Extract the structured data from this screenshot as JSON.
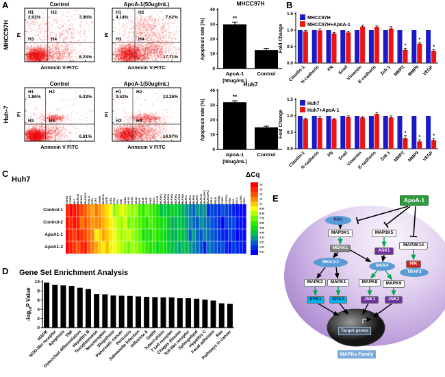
{
  "panel_labels": {
    "A": "A",
    "B": "B",
    "C": "C",
    "D": "D",
    "E": "E"
  },
  "panelA": {
    "row_labels": [
      "MHCC97H",
      "Huh-7"
    ],
    "flow_plots": [
      {
        "title": "Control",
        "ylabel": "PI",
        "xlabel": "Annexin V-FITC",
        "q1": "H1",
        "q2": "H2",
        "q3": "H3",
        "q4": "H4",
        "q1_pct": "2.02%",
        "q2_pct": "3.96%",
        "q4_pct": "6.24%"
      },
      {
        "title": "ApoA-1(50ug/mL)",
        "ylabel": "PI",
        "xlabel": "Annexin V-FITC",
        "q1": "H1",
        "q2": "H2",
        "q3": "H3",
        "q4": "H4",
        "q1_pct": "4.14%",
        "q2_pct": "7.62%",
        "q4_pct": "17.71%"
      },
      {
        "title": "Control",
        "ylabel": "PI",
        "xlabel": "Annexin V FITC",
        "q1": "H1",
        "q2": "H2",
        "q3": "H3",
        "q4": "H4",
        "q1_pct": "1.86%",
        "q2_pct": "6.33%",
        "q4_pct": "6.81%"
      },
      {
        "title": "ApoA-1(50ug/mL)",
        "ylabel": "PI",
        "xlabel": "Annexin V FITC",
        "q1": "H1",
        "q2": "H2",
        "q3": "H3",
        "q4": "H4",
        "q1_pct": "3.52%",
        "q2_pct": "13.26%",
        "q4_pct": "14.97%"
      }
    ]
  },
  "chart_data": [
    {
      "type": "bar",
      "title": "MHCC97H",
      "ylabel": "Apoptosis rate (%)",
      "ylim": [
        0,
        40
      ],
      "yticks": [
        0,
        10,
        20,
        30,
        40
      ],
      "categories": [
        [
          "ApoA-1",
          "(50ug/mL)"
        ],
        [
          "Control"
        ]
      ],
      "values": [
        30,
        12.5
      ],
      "errors": [
        1.5,
        1.2
      ],
      "sig": [
        "**",
        ""
      ]
    },
    {
      "type": "bar",
      "title": "Huh7",
      "ylabel": "Apoptosis rate (%)",
      "ylim": [
        0,
        40
      ],
      "yticks": [
        0,
        10,
        20,
        30,
        40
      ],
      "categories": [
        [
          "ApoA-1",
          "(50ug/mL)"
        ],
        [
          "Control"
        ]
      ],
      "values": [
        32,
        15
      ],
      "errors": [
        1.0,
        0.8
      ],
      "sig": [
        "**",
        ""
      ]
    },
    {
      "type": "grouped-bar",
      "ylabel": "Fold Change",
      "ylim": [
        0,
        1.5
      ],
      "yticks": [
        "0.0",
        "0.5",
        "1.0",
        "1.5"
      ],
      "legend": [
        "MHCC97H",
        "MHCC97H+ApoA-1"
      ],
      "colors": [
        "#1a1ac8",
        "#ee1414"
      ],
      "categories": [
        "Claudin-1",
        "N-cadherin",
        "FN",
        "Snail",
        "Vimentin",
        "E-cadherin",
        "Zeb 1",
        "MMP2",
        "MMP9",
        "VEGF"
      ],
      "series": [
        {
          "name": "MHCC97H",
          "values": [
            1,
            1,
            1,
            1,
            1,
            1,
            1,
            1,
            1,
            1
          ]
        },
        {
          "name": "MHCC97H+ApoA-1",
          "values": [
            0.96,
            0.99,
            0.9,
            0.93,
            1.11,
            1.1,
            1.05,
            0.4,
            0.59,
            0.37
          ],
          "errors": [
            0.03,
            0.05,
            0.03,
            0.04,
            0.04,
            0.03,
            0.06,
            0.05,
            0.04,
            0.04
          ],
          "sig": [
            "",
            "",
            "",
            "",
            "",
            "",
            "",
            "*",
            "*",
            "*"
          ]
        }
      ]
    },
    {
      "type": "grouped-bar",
      "ylabel": "Fold Change",
      "ylim": [
        0,
        1.5
      ],
      "yticks": [
        "0.0",
        "0.5",
        "1.0",
        "1.5"
      ],
      "legend": [
        "Huh7",
        "Huh7+ApoA-1"
      ],
      "colors": [
        "#1a1ac8",
        "#ee1414"
      ],
      "categories": [
        "Claudin-1",
        "N-cadherin",
        "FN",
        "Snail",
        "Vimentin",
        "E-cadherin",
        "Zeb 1",
        "MMP2",
        "MMP9",
        "VEGF"
      ],
      "series": [
        {
          "name": "Huh7",
          "values": [
            1,
            1,
            1,
            1,
            1,
            1,
            1,
            1,
            1,
            1
          ]
        },
        {
          "name": "Huh7+ApoA-1",
          "values": [
            0.9,
            0.94,
            0.9,
            0.96,
            0.95,
            1.06,
            0.95,
            0.32,
            0.22,
            0.26
          ],
          "errors": [
            0.03,
            0.04,
            0.02,
            0.04,
            0.03,
            0.04,
            0.05,
            0.08,
            0.05,
            0.05
          ],
          "sig": [
            "",
            "",
            "",
            "",
            "",
            "",
            "",
            "*",
            "*",
            "*"
          ]
        }
      ]
    },
    {
      "type": "bar",
      "title": "Gene Set Enrichment Analysis",
      "ylabel": "-log10P Value",
      "ylim": [
        0,
        10
      ],
      "yticks": [
        0,
        2,
        4,
        6,
        8,
        10
      ],
      "categories": [
        "MAPK",
        "NOD-like receptor",
        "Apoptosis",
        "TNF",
        "Osteoclast differentiation",
        "Hepatitis B",
        "Toxoplasmosis",
        "Neurotrophin",
        "Shigellosis",
        "Pancreatic cancer",
        "Pertussis",
        "Salmonella Infection",
        "Influenza A",
        "GnRH",
        "Tuberculosis",
        "T cell receptor",
        "Chagas disease",
        "Toll-like receptor",
        "Sphingolipid",
        "Hepatitis C",
        "Focal adhesion",
        "Ras",
        "Pathways in cancer"
      ],
      "values": [
        9.8,
        9.3,
        9.2,
        9.1,
        8.7,
        8.4,
        7.3,
        7.25,
        7.0,
        6.95,
        6.9,
        6.8,
        6.7,
        6.65,
        6.6,
        6.6,
        6.4,
        6.4,
        6.3,
        6.1,
        5.9,
        5.3,
        5.2
      ]
    },
    {
      "type": "heatmap",
      "title": "Huh7",
      "scale_label": "ΔCq",
      "rows": [
        "Control-1",
        "Control-2",
        "ApoA1-1",
        "ApoA1-2"
      ],
      "genes": [
        "TGFB1",
        "CCND1",
        "MYC",
        "MAPK14",
        "MKNK1",
        "MAP3K10",
        "FASLG",
        "E2F1",
        "ATF2",
        "CREB1",
        "MAPK11",
        "EGFR",
        "ELK1",
        "ETS1",
        "FOS",
        "JUN",
        "GRB2",
        "HRAS",
        "KRAS",
        "NRAS",
        "RAF1",
        "BRAF",
        "ARAF",
        "PAK1",
        "RAC1",
        "CDC42",
        "MAP2K1",
        "MAP2K2",
        "MAP2K4",
        "MAP2K6",
        "MAP3K1",
        "MAP3K2",
        "MAP3K5",
        "MAPK1",
        "MAPK3",
        "MAPK8",
        "MAPK9",
        "MAPK10",
        "MAPKAPK2",
        "MAPKAPK3",
        "RELA",
        "RELB",
        "NFKB1",
        "STAT1",
        "STAT5A",
        "TP53",
        "BAX",
        "BCL2",
        "CASP3",
        "CDK1"
      ],
      "column_base": [
        15,
        14.6,
        14.2,
        13.8,
        13.4,
        13,
        12.6,
        12.2,
        11.8,
        11.4,
        11,
        10.6,
        10.2,
        9.8,
        9.4,
        9,
        8.7,
        8.4,
        8.1,
        7.8,
        7.5,
        7.2,
        6.9,
        6.6,
        6.3,
        6,
        5.7,
        5.4,
        5.1,
        4.8,
        4.5,
        4.2,
        3.9,
        3.6,
        3.3,
        3,
        2.8,
        2.6,
        2.4,
        2.2,
        2,
        1.8,
        1.6,
        1.4,
        1.2,
        1,
        0.8,
        0.6,
        0.45,
        0.3
      ],
      "scale_ticks": [
        "15",
        "14",
        "13",
        "12",
        "11",
        "9.90",
        "8.80",
        "7.70",
        "6.60",
        "5.50",
        "4.40",
        "3.31",
        "2.21",
        "1.11",
        "0.01"
      ]
    }
  ],
  "panelE": {
    "apoa1": "ApoA-1",
    "family": "MAPKs Family",
    "target": "Target genes",
    "nodes": {
      "pak": "PAK",
      "map3k1": "MAP3K1",
      "map3k5": "MAP3K5",
      "map3k14": "MAP3K14",
      "mekk1": "MEKK1",
      "ask1": "ASK1",
      "nik": "NIK",
      "traf3": "TRAF3",
      "mkk12": "MKK1/2",
      "mkk4": "MKK4",
      "mapk3": "MAPK3",
      "mapk1": "MAPK1",
      "mapk8": "MAPK8",
      "mapk9": "MAPK9",
      "erk1": "ERK1",
      "erk2": "ERK2",
      "jnk1": "JNK1",
      "jnk2": "JNK2"
    }
  }
}
